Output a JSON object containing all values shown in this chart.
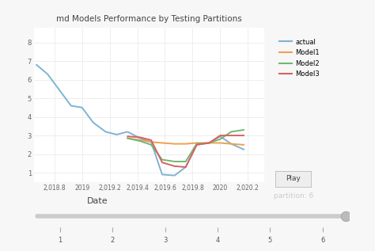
{
  "title": "md Models Performance by Testing Partitions",
  "xlabel": "Date",
  "background_color": "#f7f7f7",
  "plot_bg_color": "#ffffff",
  "legend_labels": [
    "actual",
    "Model1",
    "Model2",
    "Model3"
  ],
  "legend_colors": [
    "#7fb3d3",
    "#f0a050",
    "#70b870",
    "#d96060"
  ],
  "actual_x": [
    2018.67,
    2018.75,
    2018.83,
    2018.92,
    2019.0,
    2019.08,
    2019.17,
    2019.25,
    2019.33,
    2019.42,
    2019.5,
    2019.58,
    2019.67,
    2019.75,
    2019.83,
    2019.92,
    2020.0,
    2020.08,
    2020.17
  ],
  "actual_y": [
    6.8,
    6.3,
    5.5,
    4.6,
    4.5,
    3.7,
    3.2,
    3.05,
    3.2,
    2.85,
    2.65,
    0.9,
    0.85,
    1.3,
    2.5,
    2.6,
    2.95,
    2.55,
    2.25
  ],
  "model1_x": [
    2019.33,
    2019.42,
    2019.5,
    2019.58,
    2019.67,
    2019.75,
    2019.83,
    2019.92,
    2020.0,
    2020.08,
    2020.17
  ],
  "model1_y": [
    2.85,
    2.75,
    2.65,
    2.6,
    2.55,
    2.55,
    2.6,
    2.6,
    2.6,
    2.55,
    2.5
  ],
  "model2_x": [
    2019.33,
    2019.42,
    2019.5,
    2019.58,
    2019.67,
    2019.75,
    2019.83,
    2019.92,
    2020.0,
    2020.08,
    2020.17
  ],
  "model2_y": [
    2.85,
    2.7,
    2.5,
    1.7,
    1.6,
    1.6,
    2.55,
    2.6,
    2.8,
    3.2,
    3.3
  ],
  "model3_x": [
    2019.33,
    2019.42,
    2019.5,
    2019.58,
    2019.67,
    2019.75,
    2019.83,
    2019.92,
    2020.0,
    2020.08,
    2020.17
  ],
  "model3_y": [
    2.95,
    2.9,
    2.75,
    1.55,
    1.35,
    1.3,
    2.5,
    2.6,
    3.0,
    3.0,
    3.0
  ],
  "xlim": [
    2018.65,
    2020.32
  ],
  "ylim": [
    0.5,
    8.8
  ],
  "xticks": [
    2018.8,
    2019.0,
    2019.2,
    2019.4,
    2019.6,
    2019.8,
    2020.0,
    2020.2
  ],
  "xtick_labels": [
    "2,018.8",
    "2019",
    "2,019.2",
    "2,019.4",
    "2,019.6",
    "2,019.8",
    "2020",
    "2,020.2"
  ],
  "yticks": [
    1,
    2,
    3,
    4,
    5,
    6,
    7,
    8
  ],
  "grid_color": "#e8e8e8",
  "partition_text": "partition: 6",
  "play_button_text": "Play",
  "slider_ticks": [
    1,
    2,
    3,
    4,
    5,
    6
  ]
}
